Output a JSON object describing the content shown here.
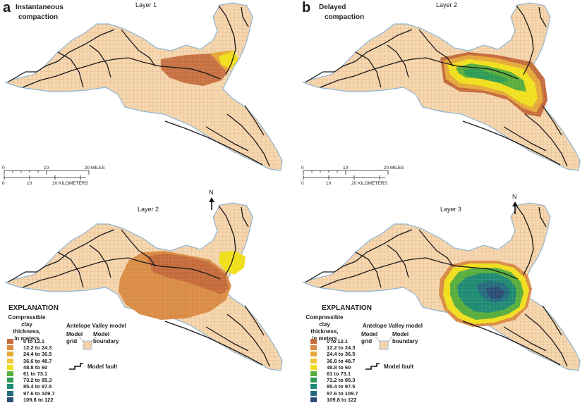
{
  "panel_a": {
    "letter": "a",
    "title_line1": "Instantaneous",
    "title_line2": "compaction",
    "top_layer_label": "Layer 1",
    "bottom_layer_label": "Layer 2"
  },
  "panel_b": {
    "letter": "b",
    "title_line1": "Delayed",
    "title_line2": "compaction",
    "top_layer_label": "Layer 2",
    "bottom_layer_label": "Layer 3"
  },
  "scale_bar": {
    "mile_ticks": [
      "0",
      "10",
      "20 MILES"
    ],
    "km_ticks": [
      "0",
      "10",
      "20 KILOMETERS"
    ]
  },
  "north_arrow": "N",
  "explanation": {
    "title": "EXPLANATION",
    "legend_title_lines": [
      "Compressible",
      "clay thickness,",
      "in meters"
    ],
    "model_title": "Antelope Valley model",
    "model_grid": "Model grid",
    "model_boundary": "Model boundary",
    "model_fault": "Model fault",
    "classes": [
      {
        "label": "0 to 12.1",
        "color": "#c46b3c"
      },
      {
        "label": "12.2 to 24.3",
        "color": "#d98c45"
      },
      {
        "label": "24.4 to 36.5",
        "color": "#e6a83a"
      },
      {
        "label": "36.6 to 48.7",
        "color": "#efc43a"
      },
      {
        "label": "48.8 to 60",
        "color": "#f0df1e"
      },
      {
        "label": "61 to 73.1",
        "color": "#58ad3c"
      },
      {
        "label": "73.2 to 85.3",
        "color": "#2f9b54"
      },
      {
        "label": "85.4 to 97.5",
        "color": "#1f8a73"
      },
      {
        "label": "97.6 to 109.7",
        "color": "#256d7e"
      },
      {
        "label": "109.8 to 122",
        "color": "#2c4d76"
      }
    ]
  },
  "colors": {
    "base_cell": "#f6d7b0",
    "grid_line": "#d9a877",
    "boundary": "#8fb6d4",
    "fault": "#1a1a1a"
  }
}
